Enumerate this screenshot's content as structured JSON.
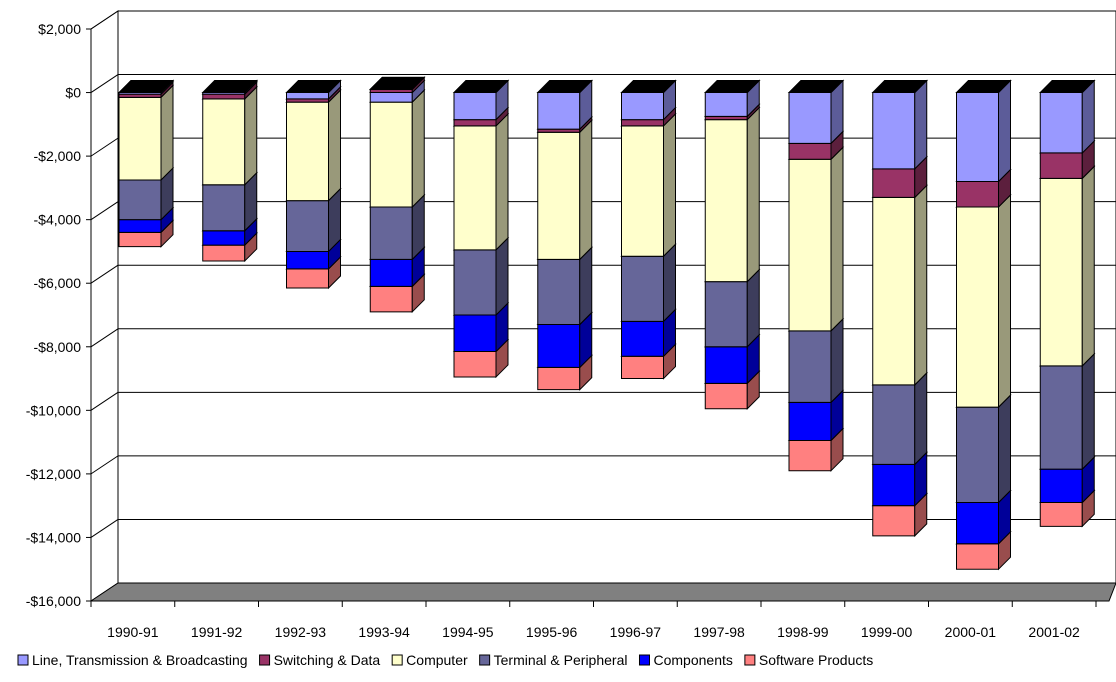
{
  "chart_data": {
    "type": "bar",
    "stacked": true,
    "three_d": true,
    "title": "",
    "xlabel": "",
    "ylabel": "",
    "ylim": [
      -16000,
      2000
    ],
    "y_ticks": [
      2000,
      0,
      -2000,
      -4000,
      -6000,
      -8000,
      -10000,
      -12000,
      -14000,
      -16000
    ],
    "y_tick_labels": [
      "$2,000",
      "$0",
      "-$2,000",
      "-$4,000",
      "-$6,000",
      "-$8,000",
      "-$10,000",
      "-$12,000",
      "-$14,000",
      "-$16,000"
    ],
    "grid": true,
    "legend_position": "bottom",
    "categories": [
      "1990-91",
      "1991-92",
      "1992-93",
      "1993-94",
      "1994-95",
      "1995-96",
      "1996-97",
      "1997-98",
      "1998-99",
      "1999-00",
      "2000-01",
      "2001-02"
    ],
    "series": [
      {
        "name": "Line, Transmission & Broadcasting",
        "color": "#9999ff",
        "values": [
          -50,
          -50,
          -200,
          -300,
          -850,
          -1150,
          -850,
          -750,
          -1600,
          -2400,
          -2800,
          -1900
        ]
      },
      {
        "name": "Switching & Data",
        "color": "#993366",
        "values": [
          -100,
          -150,
          -100,
          100,
          -200,
          -100,
          -200,
          -100,
          -500,
          -900,
          -800,
          -800
        ]
      },
      {
        "name": "Computer",
        "color": "#ffffcc",
        "values": [
          -2600,
          -2700,
          -3100,
          -3300,
          -3900,
          -4000,
          -4100,
          -5100,
          -5400,
          -5900,
          -6300,
          -5900
        ]
      },
      {
        "name": "Terminal & Peripheral",
        "color": "#666699",
        "values": [
          -1250,
          -1450,
          -1600,
          -1650,
          -2050,
          -2050,
          -2050,
          -2050,
          -2250,
          -2500,
          -3000,
          -3250
        ]
      },
      {
        "name": "Components",
        "color": "#0000ff",
        "values": [
          -400,
          -450,
          -550,
          -850,
          -1150,
          -1350,
          -1100,
          -1150,
          -1200,
          -1300,
          -1300,
          -1050
        ]
      },
      {
        "name": "Software Products",
        "color": "#ff8080",
        "values": [
          -450,
          -500,
          -600,
          -800,
          -800,
          -700,
          -700,
          -800,
          -950,
          -950,
          -800,
          -750
        ]
      }
    ]
  }
}
